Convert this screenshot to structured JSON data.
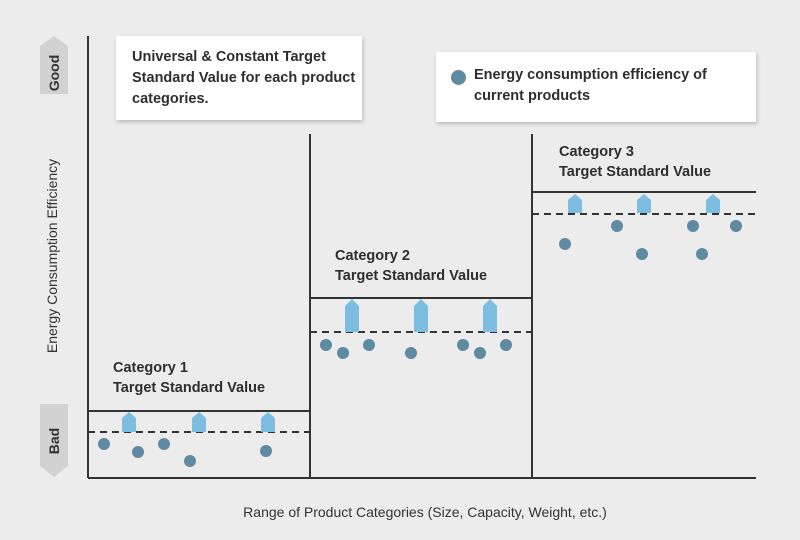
{
  "axes": {
    "x_label": "Range of Product Categories (Size, Capacity, Weight, etc.)",
    "y_label": "Energy Consumption Efficiency",
    "top_badge": "Good",
    "bottom_badge": "Bad"
  },
  "callouts": {
    "target_note": "Universal & Constant Target Standard Value for each product categories.",
    "legend_text": "Energy consumption efficiency of current products"
  },
  "categories": [
    {
      "name": "Category 1",
      "target_label": "Target Standard Value"
    },
    {
      "name": "Category 2",
      "target_label": "Target Standard Value"
    },
    {
      "name": "Category 3",
      "target_label": "Target Standard Value"
    }
  ],
  "colors": {
    "product_dot": "#5f8aa2",
    "improvement_arrow": "#7dbde0",
    "line": "#333333",
    "badge": "#d2d2d2"
  }
}
